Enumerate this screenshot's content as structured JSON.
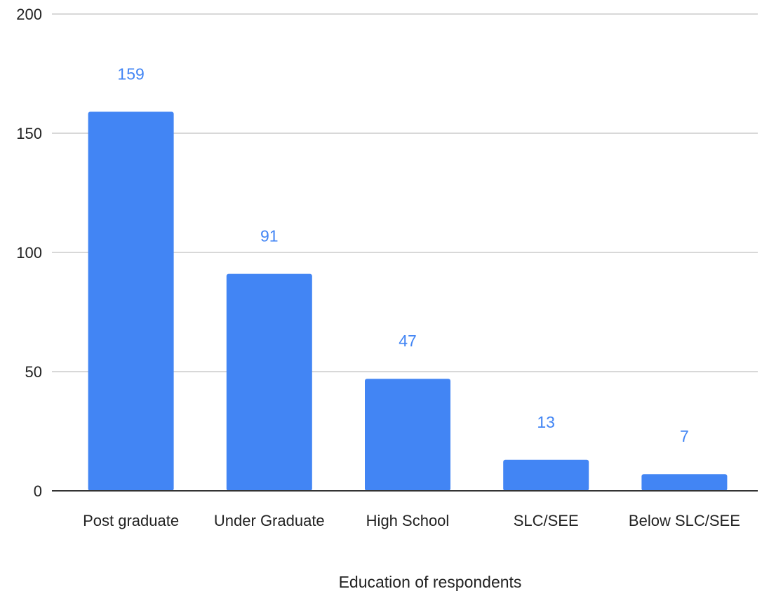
{
  "chart_data": {
    "type": "bar",
    "title": "",
    "xlabel": "Education of respondents",
    "ylabel": "",
    "categories": [
      "Post graduate",
      "Under Graduate",
      "High School",
      "SLC/SEE",
      "Below SLC/SEE"
    ],
    "values": [
      159,
      91,
      47,
      13,
      7
    ],
    "data_labels": [
      "159",
      "91",
      "47",
      "13",
      "7"
    ],
    "ylim": [
      0,
      200
    ],
    "yticks": [
      "0",
      "50",
      "100",
      "150",
      "200"
    ],
    "grid": true,
    "legend": "none",
    "colors": {
      "bar": "#4285f4",
      "data_label": "#4285f4",
      "grid": "#cccccc",
      "baseline": "#333333"
    }
  }
}
